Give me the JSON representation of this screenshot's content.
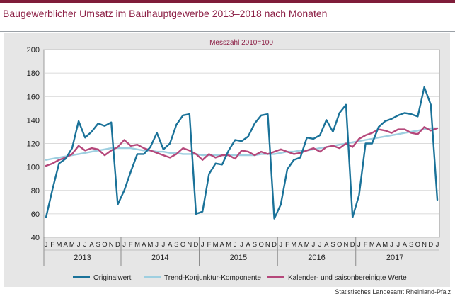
{
  "page": {
    "title": "Baugewerblicher Umsatz im Bauhauptgewerbe 2013–2018 nach Monaten",
    "source": "Statistisches Landesamt Rheinland-Pfalz"
  },
  "colors": {
    "accent_bar": "#7f1d3a",
    "title": "#8c1f45",
    "panel_bg": "#e6e6e6",
    "plot_bg": "#ffffff"
  },
  "chart_data": {
    "type": "line",
    "subtitle": "Messzahl 2010=100",
    "ylim": [
      40,
      200
    ],
    "yticks": [
      40,
      60,
      80,
      100,
      120,
      140,
      160,
      180,
      200
    ],
    "grid": true,
    "legend_position": "bottom",
    "month_labels": [
      "J",
      "F",
      "M",
      "A",
      "M",
      "J",
      "J",
      "A",
      "S",
      "O",
      "N",
      "D",
      "J",
      "F",
      "M",
      "A",
      "M",
      "J",
      "J",
      "A",
      "S",
      "O",
      "N",
      "D",
      "J",
      "F",
      "M",
      "A",
      "M",
      "J",
      "J",
      "A",
      "S",
      "O",
      "N",
      "D",
      "J",
      "F",
      "M",
      "A",
      "M",
      "J",
      "J",
      "A",
      "S",
      "O",
      "N",
      "D",
      "J",
      "F",
      "M",
      "A",
      "M",
      "J",
      "J",
      "A",
      "S",
      "O",
      "N",
      "D",
      "J"
    ],
    "year_groups": [
      {
        "label": "2013",
        "start": 0,
        "end": 12
      },
      {
        "label": "2014",
        "start": 12,
        "end": 24
      },
      {
        "label": "2015",
        "start": 24,
        "end": 36
      },
      {
        "label": "2016",
        "start": 36,
        "end": 48
      },
      {
        "label": "2017",
        "start": 48,
        "end": 60
      }
    ],
    "series": [
      {
        "name": "Originalwert",
        "color": "#1a7299",
        "values": [
          57,
          81,
          103,
          107,
          116,
          139,
          125,
          130,
          137,
          135,
          138,
          68,
          80,
          96,
          111,
          111,
          117,
          129,
          115,
          120,
          136,
          144,
          145,
          60,
          62,
          94,
          103,
          102,
          114,
          123,
          122,
          126,
          137,
          144,
          145,
          56,
          68,
          98,
          106,
          108,
          125,
          124,
          127,
          140,
          130,
          146,
          153,
          57,
          76,
          120,
          120,
          134,
          139,
          141,
          144,
          146,
          145,
          143,
          168,
          153,
          72
        ]
      },
      {
        "name": "Trend-Konjunktur-Komponente",
        "color": "#9ecfe0",
        "values": [
          106,
          107,
          108,
          109,
          110,
          111,
          112,
          113,
          114,
          115,
          116,
          116,
          116,
          116,
          115,
          114,
          114,
          113,
          113,
          112,
          112,
          111,
          111,
          111,
          110,
          110,
          110,
          110,
          110,
          110,
          110,
          110,
          110,
          111,
          111,
          111,
          112,
          113,
          113,
          114,
          114,
          115,
          116,
          117,
          118,
          119,
          120,
          121,
          122,
          123,
          124,
          125,
          126,
          127,
          128,
          129,
          130,
          131,
          132,
          133,
          133
        ]
      },
      {
        "name": "Kalender- und saisonbereinigte Werte",
        "color": "#b5477a",
        "values": [
          101,
          103,
          106,
          108,
          111,
          118,
          114,
          116,
          115,
          110,
          114,
          117,
          123,
          118,
          119,
          116,
          114,
          112,
          110,
          108,
          111,
          116,
          114,
          111,
          106,
          111,
          108,
          110,
          110,
          107,
          114,
          113,
          110,
          113,
          111,
          113,
          115,
          113,
          111,
          112,
          114,
          116,
          113,
          117,
          118,
          116,
          120,
          117,
          124,
          127,
          129,
          132,
          131,
          129,
          132,
          132,
          129,
          128,
          134,
          131,
          133
        ]
      }
    ]
  }
}
